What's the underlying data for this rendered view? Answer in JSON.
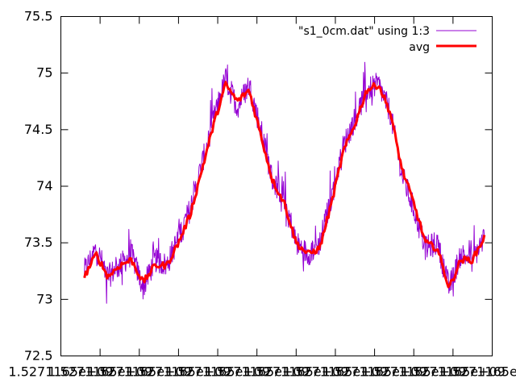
{
  "chart_data": {
    "type": "line",
    "title": "",
    "xlabel": "",
    "ylabel": "",
    "x_tick_labels": [
      "1.5271165e+09",
      "1.5271165e+09",
      "1.5271165e+09",
      "1.5271165e+09",
      "1.5271165e+09",
      "1.5271165e+09",
      "1.5271165e+09",
      "1.5271165e+09",
      "1.5271165e+09",
      "1.5271165e+09",
      "1.5271165e+09",
      "1.5271165e+09"
    ],
    "y_ticks": [
      72.5,
      73,
      73.5,
      74,
      74.5,
      75,
      75.5
    ],
    "y_tick_labels": [
      "72.5",
      "73",
      "73.5",
      "74",
      "74.5",
      "75",
      "75.5"
    ],
    "ylim": [
      72.5,
      75.5
    ],
    "xlim": [
      0,
      11
    ],
    "legend_position": "top-right",
    "grid": false,
    "series": [
      {
        "name": "\"s1_0cm.dat\" using 1:3",
        "color": "#9400d3",
        "style": "thin-noisy-line",
        "x": [
          0.6,
          0.9,
          1.2,
          1.5,
          1.8,
          2.1,
          2.4,
          2.7,
          3.0,
          3.3,
          3.6,
          3.9,
          4.2,
          4.5,
          4.8,
          5.1,
          5.4,
          5.7,
          6.0,
          6.3,
          6.6,
          6.9,
          7.2,
          7.5,
          7.8,
          8.1,
          8.4,
          8.7,
          9.0,
          9.3,
          9.6,
          9.9,
          10.2,
          10.5,
          10.8
        ],
        "y": [
          73.25,
          73.45,
          73.2,
          73.3,
          73.4,
          73.1,
          73.35,
          73.3,
          73.55,
          73.8,
          74.2,
          74.6,
          74.95,
          74.7,
          74.9,
          74.5,
          74.05,
          73.9,
          73.5,
          73.4,
          73.5,
          73.9,
          74.35,
          74.6,
          74.85,
          74.9,
          74.65,
          74.1,
          73.8,
          73.45,
          73.5,
          73.1,
          73.4,
          73.35,
          73.55
        ]
      },
      {
        "name": "avg",
        "color": "#ff0000",
        "style": "thick-line",
        "x": [
          0.6,
          0.9,
          1.2,
          1.5,
          1.8,
          2.1,
          2.4,
          2.7,
          3.0,
          3.3,
          3.6,
          3.9,
          4.2,
          4.5,
          4.8,
          5.1,
          5.4,
          5.7,
          6.0,
          6.3,
          6.6,
          6.9,
          7.2,
          7.5,
          7.8,
          8.1,
          8.4,
          8.7,
          9.0,
          9.3,
          9.6,
          9.9,
          10.2,
          10.5,
          10.8
        ],
        "y": [
          73.2,
          73.4,
          73.2,
          73.3,
          73.35,
          73.15,
          73.3,
          73.3,
          73.5,
          73.75,
          74.15,
          74.55,
          74.9,
          74.75,
          74.85,
          74.45,
          74.05,
          73.85,
          73.5,
          73.4,
          73.45,
          73.85,
          74.3,
          74.55,
          74.85,
          74.9,
          74.65,
          74.15,
          73.85,
          73.5,
          73.45,
          73.1,
          73.35,
          73.35,
          73.55
        ]
      }
    ]
  }
}
